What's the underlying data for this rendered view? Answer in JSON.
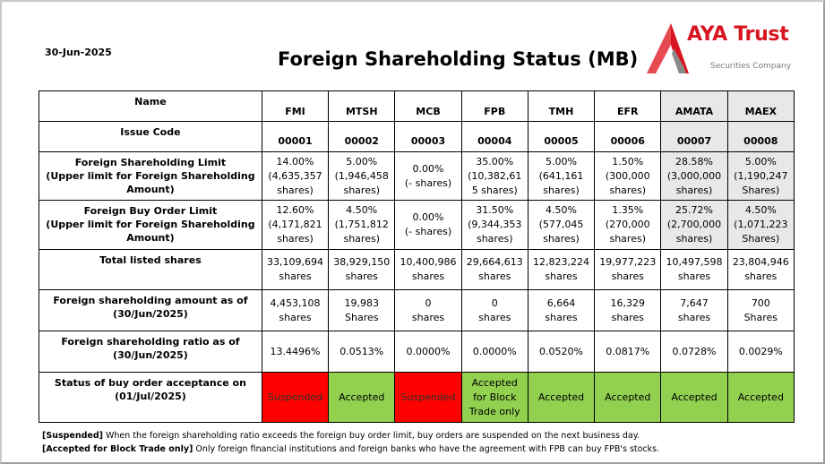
{
  "date": "30-Jun-2025",
  "title": "Foreign Shareholding Status (MB)",
  "logo": {
    "brand": "AYA Trust",
    "sub": "Securities Company"
  },
  "row_labels": {
    "name": "Name",
    "issue_code": "Issue Code",
    "limit_l1": "Foreign Shareholding Limit",
    "limit_l2": "(Upper limit for Foreign Shareholding",
    "limit_l3": "Amount)",
    "buy_l1": "Foreign Buy Order Limit",
    "buy_l2": "(Upper limit for Foreign Shareholding",
    "buy_l3": "Amount)",
    "listed": "Total listed shares",
    "amount_l1": "Foreign shareholding amount as of",
    "amount_l2": "(30/Jun/2025)",
    "ratio_l1": "Foreign shareholding ratio as of",
    "ratio_l2": "(30/Jun/2025)",
    "status_l1": "Status of buy order acceptance on",
    "status_l2": "(01/Jul/2025)"
  },
  "stocks": [
    {
      "name": "FMI",
      "code": "00001",
      "limit_pct": "14.00%",
      "limit_l2": "(4,635,357",
      "limit_l3": "shares)",
      "buy_pct": "12.60%",
      "buy_l2": "(4,171,821",
      "buy_l3": "shares)",
      "listed": "33,109,694",
      "listed_unit": "shares",
      "amount": "4,453,108",
      "amount_unit": "shares",
      "ratio": "13.4496%",
      "status_l1": "Suspended",
      "status_l2": "",
      "status_l3": ""
    },
    {
      "name": "MTSH",
      "code": "00002",
      "limit_pct": "5.00%",
      "limit_l2": "(1,946,458",
      "limit_l3": "shares)",
      "buy_pct": "4.50%",
      "buy_l2": "(1,751,812",
      "buy_l3": "shares)",
      "listed": "38,929,150",
      "listed_unit": "shares",
      "amount": "19,983",
      "amount_unit": "Shares",
      "ratio": "0.0513%",
      "status_l1": "Accepted",
      "status_l2": "",
      "status_l3": ""
    },
    {
      "name": "MCB",
      "code": "00003",
      "limit_pct": "0.00%",
      "limit_l2": "(- shares)",
      "limit_l3": "",
      "buy_pct": "0.00%",
      "buy_l2": "(- shares)",
      "buy_l3": "",
      "listed": "10,400,986",
      "listed_unit": "shares",
      "amount": "0",
      "amount_unit": "shares",
      "ratio": "0.0000%",
      "status_l1": "Suspended",
      "status_l2": "",
      "status_l3": ""
    },
    {
      "name": "FPB",
      "code": "00004",
      "limit_pct": "35.00%",
      "limit_l2": "(10,382,61",
      "limit_l3": "5 shares)",
      "buy_pct": "31.50%",
      "buy_l2": "(9,344,353",
      "buy_l3": "shares)",
      "listed": "29,664,613",
      "listed_unit": "shares",
      "amount": "0",
      "amount_unit": "shares",
      "ratio": "0.0000%",
      "status_l1": "Accepted",
      "status_l2": "for Block",
      "status_l3": "Trade only"
    },
    {
      "name": "TMH",
      "code": "00005",
      "limit_pct": "5.00%",
      "limit_l2": "(641,161",
      "limit_l3": "shares)",
      "buy_pct": "4.50%",
      "buy_l2": "(577,045",
      "buy_l3": "shares)",
      "listed": "12,823,224",
      "listed_unit": "shares",
      "amount": "6,664",
      "amount_unit": "shares",
      "ratio": "0.0520%",
      "status_l1": "Accepted",
      "status_l2": "",
      "status_l3": ""
    },
    {
      "name": "EFR",
      "code": "00006",
      "limit_pct": "1.50%",
      "limit_l2": "(300,000",
      "limit_l3": "shares)",
      "buy_pct": "1.35%",
      "buy_l2": "(270,000",
      "buy_l3": "shares)",
      "listed": "19,977,223",
      "listed_unit": "shares",
      "amount": "16,329",
      "amount_unit": "shares",
      "ratio": "0.0817%",
      "status_l1": "Accepted",
      "status_l2": "",
      "status_l3": ""
    },
    {
      "name": "AMATA",
      "code": "00007",
      "limit_pct": "28.58%",
      "limit_l2": "(3,000,000",
      "limit_l3": "shares)",
      "buy_pct": "25.72%",
      "buy_l2": "(2,700,000",
      "buy_l3": "shares)",
      "listed": "10,497,598",
      "listed_unit": "shares",
      "amount": "7,647",
      "amount_unit": "shares",
      "ratio": "0.0728%",
      "status_l1": "Accepted",
      "status_l2": "",
      "status_l3": ""
    },
    {
      "name": "MAEX",
      "code": "00008",
      "limit_pct": "5.00%",
      "limit_l2": "(1,190,247",
      "limit_l3": "Shares)",
      "buy_pct": "4.50%",
      "buy_l2": "(1,071,223",
      "buy_l3": "Shares)",
      "listed": "23,804,946",
      "listed_unit": "shares",
      "amount": "700",
      "amount_unit": "Shares",
      "ratio": "0.0029%",
      "status_l1": "Accepted",
      "status_l2": "",
      "status_l3": ""
    }
  ],
  "notes": [
    {
      "key": "[Suspended]",
      "text": " When the foreign shareholding ratio exceeds the foreign buy order limit, buy orders are suspended on the next business day."
    },
    {
      "key": "[Accepted for Block Trade only]",
      "text": " Only foreign financial institutions and foreign banks who have the agreement with FPB can buy FPB's stocks."
    }
  ],
  "colors": {
    "brand": "#d7141f",
    "suspended": "#ff0000",
    "accepted": "#92d050",
    "grey_cell": "#e8e8e8"
  }
}
